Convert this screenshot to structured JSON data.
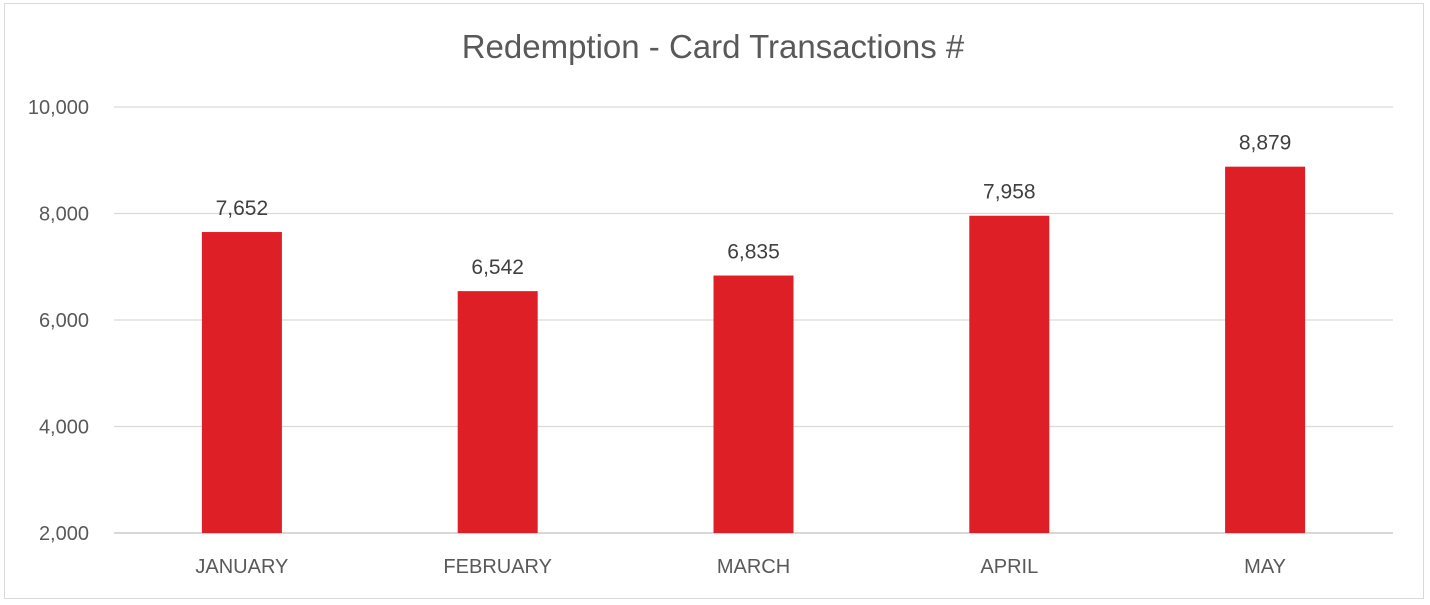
{
  "chart_data": {
    "type": "bar",
    "title": "Redemption - Card Transactions #",
    "categories": [
      "JANUARY",
      "FEBRUARY",
      "MARCH",
      "APRIL",
      "MAY"
    ],
    "values": [
      7652,
      6542,
      6835,
      7958,
      8879
    ],
    "data_labels": [
      "7,652",
      "6,542",
      "6,835",
      "7,958",
      "8,879"
    ],
    "ylim": [
      2000,
      10000
    ],
    "yticks": [
      2000,
      4000,
      6000,
      8000,
      10000
    ],
    "ytick_labels": [
      "2,000",
      "4,000",
      "6,000",
      "8,000",
      "10,000"
    ],
    "grid": true,
    "bar_color": "#df1f26",
    "xlabel": "",
    "ylabel": ""
  }
}
